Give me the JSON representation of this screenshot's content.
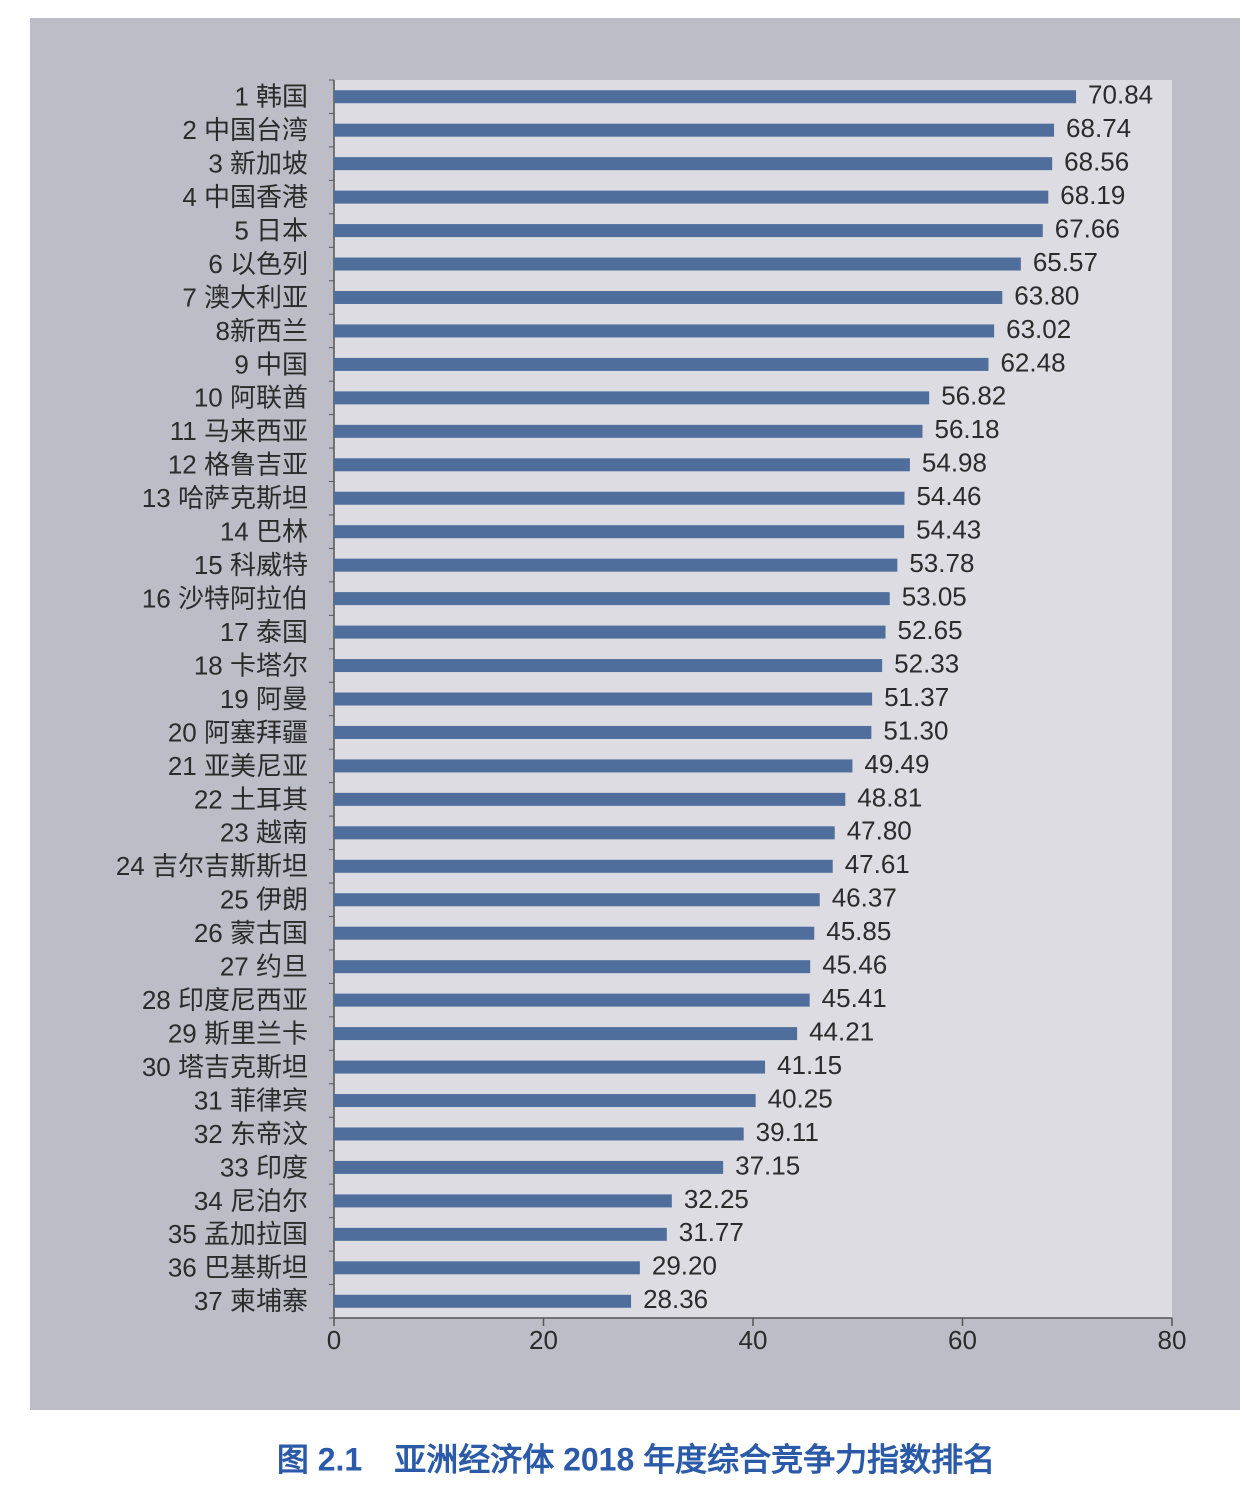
{
  "chart_data": {
    "type": "bar",
    "orientation": "horizontal",
    "title": "图 2.1　亚洲经济体 2018 年度综合竞争力指数排名",
    "categories": [
      "1 韩国",
      "2 中国台湾",
      "3 新加坡",
      "4 中国香港",
      "5 日本",
      "6 以色列",
      "7 澳大利亚",
      "8新西兰",
      "9 中国",
      "10 阿联酋",
      "11 马来西亚",
      "12 格鲁吉亚",
      "13 哈萨克斯坦",
      "14 巴林",
      "15 科威特",
      "16 沙特阿拉伯",
      "17 泰国",
      "18 卡塔尔",
      "19 阿曼",
      "20 阿塞拜疆",
      "21 亚美尼亚",
      "22 土耳其",
      "23 越南",
      "24 吉尔吉斯斯坦",
      "25 伊朗",
      "26 蒙古国",
      "27 约旦",
      "28 印度尼西亚",
      "29 斯里兰卡",
      "30 塔吉克斯坦",
      "31 菲律宾",
      "32 东帝汶",
      "33 印度",
      "34 尼泊尔",
      "35 孟加拉国",
      "36 巴基斯坦",
      "37 柬埔寨"
    ],
    "values": [
      70.84,
      68.74,
      68.56,
      68.19,
      67.66,
      65.57,
      63.8,
      63.02,
      62.48,
      56.82,
      56.18,
      54.98,
      54.46,
      54.43,
      53.78,
      53.05,
      52.65,
      52.33,
      51.37,
      51.3,
      49.49,
      48.81,
      47.8,
      47.61,
      46.37,
      45.85,
      45.46,
      45.41,
      44.21,
      41.15,
      40.25,
      39.11,
      37.15,
      32.25,
      31.77,
      29.2,
      28.36
    ],
    "value_labels": [
      "70.84",
      "68.74",
      "68.56",
      "68.19",
      "67.66",
      "65.57",
      "63.80",
      "63.02",
      "62.48",
      "56.82",
      "56.18",
      "54.98",
      "54.46",
      "54.43",
      "53.78",
      "53.05",
      "52.65",
      "52.33",
      "51.37",
      "51.30",
      "49.49",
      "48.81",
      "47.80",
      "47.61",
      "46.37",
      "45.85",
      "45.46",
      "45.41",
      "44.21",
      "41.15",
      "40.25",
      "39.11",
      "37.15",
      "32.25",
      "31.77",
      "29.20",
      "28.36"
    ],
    "color": "#4f6e9b",
    "xlim": [
      0,
      80
    ],
    "xticks": [
      0,
      20,
      40,
      60,
      80
    ],
    "grid": false
  }
}
